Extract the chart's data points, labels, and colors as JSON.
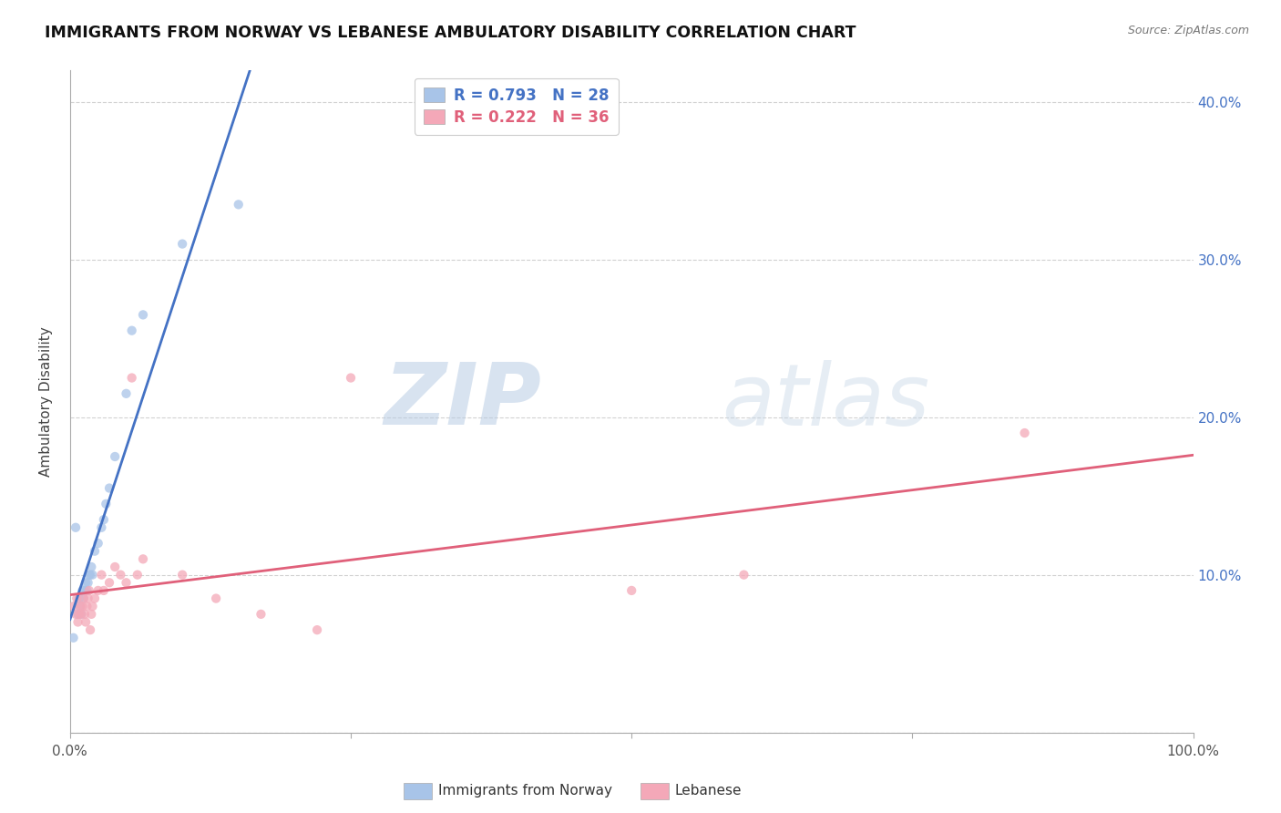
{
  "title": "IMMIGRANTS FROM NORWAY VS LEBANESE AMBULATORY DISABILITY CORRELATION CHART",
  "source": "Source: ZipAtlas.com",
  "ylabel": "Ambulatory Disability",
  "xlim": [
    0,
    1.0
  ],
  "ylim": [
    0,
    0.42
  ],
  "norway_R": 0.793,
  "norway_N": 28,
  "lebanese_R": 0.222,
  "lebanese_N": 36,
  "norway_color": "#a8c4e8",
  "lebanese_color": "#f4a8b8",
  "norway_line_color": "#4472c4",
  "lebanese_line_color": "#e0607a",
  "legend_label_norway": "Immigrants from Norway",
  "legend_label_lebanese": "Lebanese",
  "watermark_zip": "ZIP",
  "watermark_atlas": "atlas",
  "norway_scatter_x": [
    0.003,
    0.005,
    0.007,
    0.008,
    0.009,
    0.01,
    0.011,
    0.012,
    0.013,
    0.014,
    0.015,
    0.016,
    0.017,
    0.018,
    0.019,
    0.02,
    0.022,
    0.025,
    0.028,
    0.03,
    0.032,
    0.035,
    0.04,
    0.05,
    0.055,
    0.065,
    0.1,
    0.15
  ],
  "norway_scatter_y": [
    0.06,
    0.13,
    0.075,
    0.085,
    0.08,
    0.075,
    0.09,
    0.085,
    0.09,
    0.095,
    0.09,
    0.095,
    0.1,
    0.1,
    0.105,
    0.1,
    0.115,
    0.12,
    0.13,
    0.135,
    0.145,
    0.155,
    0.175,
    0.215,
    0.255,
    0.265,
    0.31,
    0.335
  ],
  "lebanese_scatter_x": [
    0.003,
    0.005,
    0.006,
    0.007,
    0.008,
    0.009,
    0.01,
    0.011,
    0.012,
    0.013,
    0.014,
    0.015,
    0.016,
    0.017,
    0.018,
    0.019,
    0.02,
    0.022,
    0.025,
    0.028,
    0.03,
    0.035,
    0.04,
    0.045,
    0.05,
    0.055,
    0.06,
    0.065,
    0.1,
    0.13,
    0.17,
    0.22,
    0.25,
    0.5,
    0.6,
    0.85
  ],
  "lebanese_scatter_y": [
    0.08,
    0.075,
    0.085,
    0.07,
    0.075,
    0.08,
    0.075,
    0.08,
    0.085,
    0.075,
    0.07,
    0.08,
    0.085,
    0.09,
    0.065,
    0.075,
    0.08,
    0.085,
    0.09,
    0.1,
    0.09,
    0.095,
    0.105,
    0.1,
    0.095,
    0.225,
    0.1,
    0.11,
    0.1,
    0.085,
    0.075,
    0.065,
    0.225,
    0.09,
    0.1,
    0.19
  ]
}
